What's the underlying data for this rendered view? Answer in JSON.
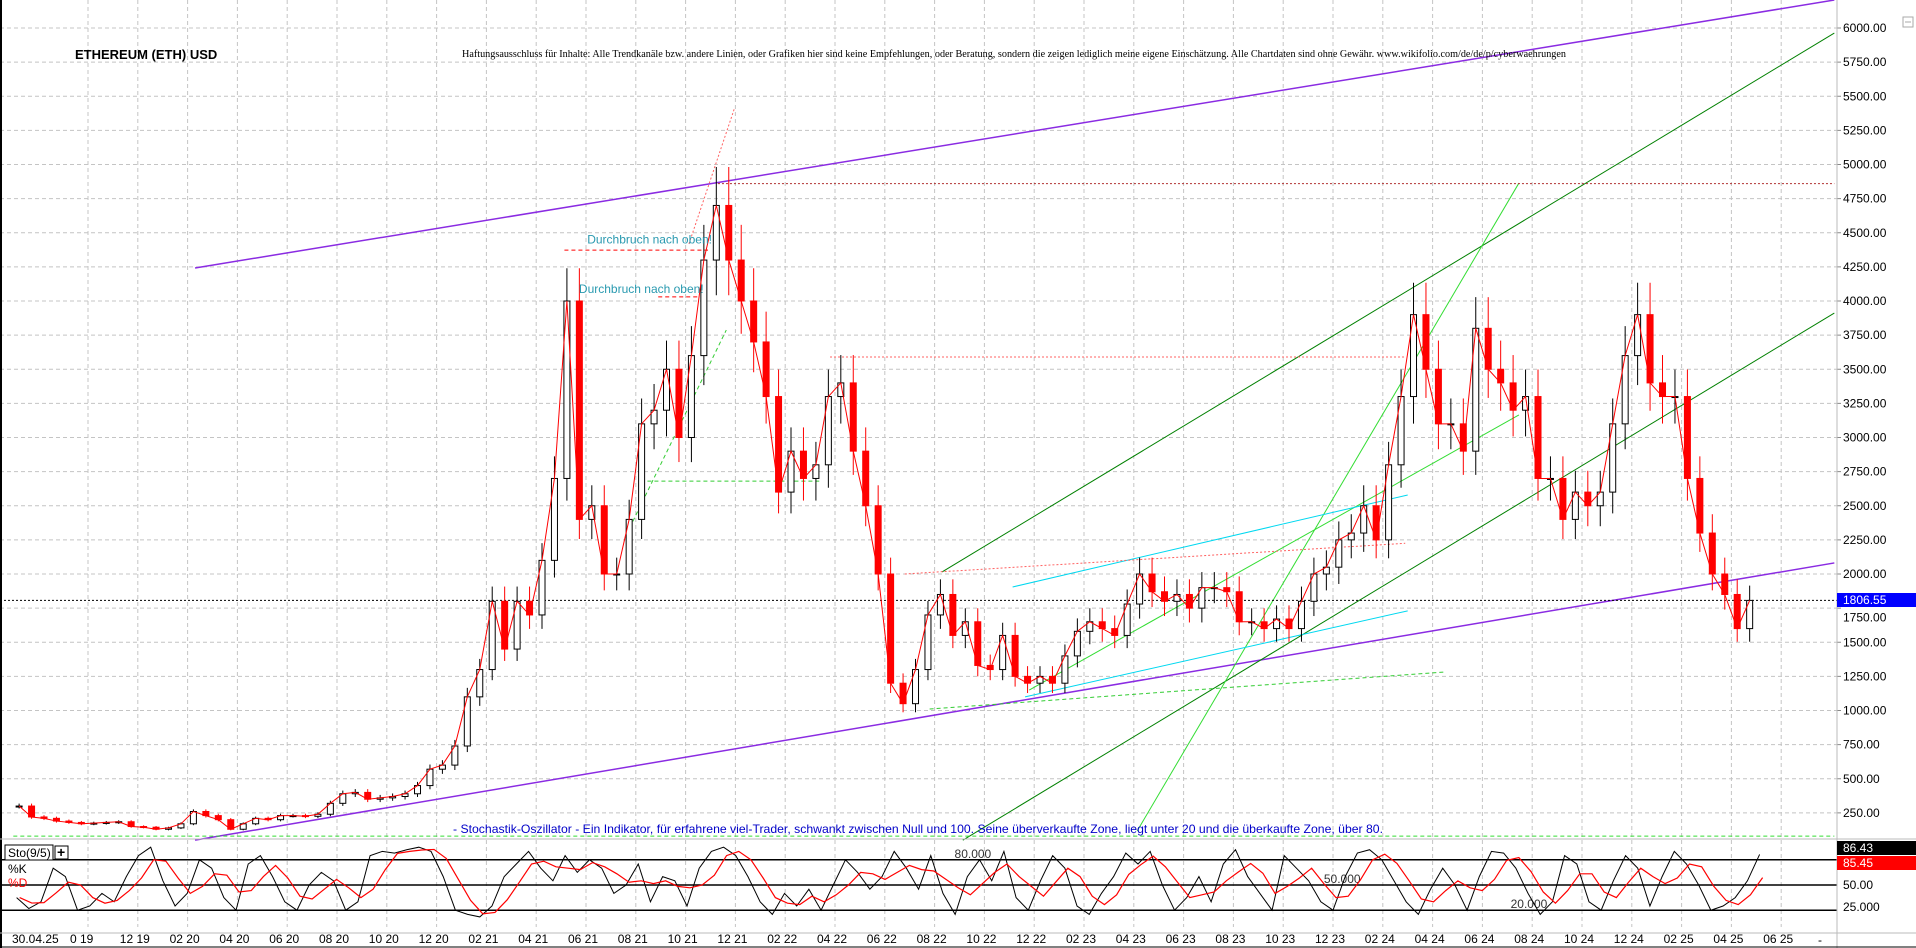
{
  "chart_data": {
    "type": "candlestick",
    "title": "ETHEREUM (ETH) USD",
    "disclaimer": "Haftungsausschluss für Inhalte: Alle Trendkanäle bzw. andere Linien, oder Grafiken hier sind keine Empfehlungen, oder Beratung, sondern die zeigen lediglich meine eigene Einschätzung. Alle Chartdaten sind ohne Gewähr.  www.wikifolio.com/de/de/p/cyberwaehrungen",
    "ylim": [
      0,
      6200
    ],
    "y_ticks": [
      "6000.00",
      "5750.00",
      "5500.00",
      "5250.00",
      "5000.00",
      "4750.00",
      "4500.00",
      "4250.00",
      "4000.00",
      "3750.00",
      "3500.00",
      "3250.00",
      "3000.00",
      "2750.00",
      "2500.00",
      "2250.00",
      "2000.00",
      "1750.00",
      "1500.00",
      "1250.00",
      "1000.00",
      "750.00",
      "500.00",
      "250.00"
    ],
    "x_ticks": [
      {
        "label": "30.04.25",
        "date": "2019-07-01"
      },
      {
        "label": "0 19",
        "date": "2019-10-01"
      },
      {
        "label": "12 19",
        "date": "2019-12-01"
      },
      {
        "label": "02 20",
        "date": "2020-02-01"
      },
      {
        "label": "04 20",
        "date": "2020-04-01"
      },
      {
        "label": "06 20",
        "date": "2020-06-01"
      },
      {
        "label": "08 20",
        "date": "2020-08-01"
      },
      {
        "label": "10 20",
        "date": "2020-10-01"
      },
      {
        "label": "12 20",
        "date": "2020-12-01"
      },
      {
        "label": "02 21",
        "date": "2021-02-01"
      },
      {
        "label": "04 21",
        "date": "2021-04-01"
      },
      {
        "label": "06 21",
        "date": "2021-06-01"
      },
      {
        "label": "08 21",
        "date": "2021-08-01"
      },
      {
        "label": "10 21",
        "date": "2021-10-01"
      },
      {
        "label": "12 21",
        "date": "2021-12-01"
      },
      {
        "label": "02 22",
        "date": "2022-02-01"
      },
      {
        "label": "04 22",
        "date": "2022-04-01"
      },
      {
        "label": "06 22",
        "date": "2022-06-01"
      },
      {
        "label": "08 22",
        "date": "2022-08-01"
      },
      {
        "label": "10 22",
        "date": "2022-10-01"
      },
      {
        "label": "12 22",
        "date": "2022-12-01"
      },
      {
        "label": "02 23",
        "date": "2023-02-01"
      },
      {
        "label": "04 23",
        "date": "2023-04-01"
      },
      {
        "label": "06 23",
        "date": "2023-06-01"
      },
      {
        "label": "08 23",
        "date": "2023-08-01"
      },
      {
        "label": "10 23",
        "date": "2023-10-01"
      },
      {
        "label": "12 23",
        "date": "2023-12-01"
      },
      {
        "label": "02 24",
        "date": "2024-02-01"
      },
      {
        "label": "04 24",
        "date": "2024-04-01"
      },
      {
        "label": "06 24",
        "date": "2024-06-01"
      },
      {
        "label": "08 24",
        "date": "2024-08-01"
      },
      {
        "label": "10 24",
        "date": "2024-10-01"
      },
      {
        "label": "12 24",
        "date": "2024-12-01"
      },
      {
        "label": "02 25",
        "date": "2025-02-01"
      },
      {
        "label": "04 25",
        "date": "2025-04-01"
      },
      {
        "label": "06 25",
        "date": "2025-06-01"
      }
    ],
    "axis_end_label": "-",
    "grid": true,
    "up_color": "#000000",
    "down_color": "#ff0000",
    "closes_semi_monthly_start": "2019-07",
    "closes": [
      300,
      220,
      210,
      190,
      180,
      170,
      175,
      180,
      185,
      150,
      145,
      130,
      140,
      170,
      260,
      230,
      200,
      130,
      170,
      210,
      200,
      230,
      230,
      225,
      240,
      320,
      390,
      400,
      350,
      360,
      370,
      390,
      450,
      570,
      600,
      740,
      1100,
      1300,
      1800,
      1450,
      1800,
      1700,
      2100,
      2700,
      4000,
      2400,
      2500,
      2000,
      2000,
      2400,
      3100,
      3200,
      3500,
      3000,
      3600,
      4300,
      4700,
      4300,
      4000,
      3700,
      3300,
      2600,
      2900,
      2700,
      2800,
      3300,
      3400,
      2900,
      2500,
      2000,
      1200,
      1050,
      1300,
      1700,
      1850,
      1550,
      1650,
      1330,
      1300,
      1550,
      1250,
      1200,
      1250,
      1200,
      1400,
      1580,
      1650,
      1600,
      1550,
      1780,
      2000,
      1870,
      1800,
      1850,
      1750,
      1900,
      1900,
      1870,
      1650,
      1650,
      1600,
      1670,
      1600,
      1800,
      2000,
      2050,
      2250,
      2300,
      2500,
      2250,
      2800,
      3300,
      3900,
      3500,
      3100,
      3100,
      2900,
      3800,
      3500,
      3400,
      3200,
      3300,
      2700,
      2700,
      2400,
      2600,
      2500,
      2600,
      3100,
      3600,
      3900,
      3400,
      3300,
      3300,
      2700,
      2300,
      2000,
      1850,
      1600,
      1806.55
    ],
    "current_price": {
      "label": "1806.55",
      "value": 1806.55,
      "color": "#0000ff"
    },
    "trendlines": [
      {
        "name": "upper-channel",
        "color": "#8a2be2",
        "style": "solid",
        "p1": [
          "2020-02-10",
          4242
        ],
        "p2": [
          "2025-08-05",
          6205
        ]
      },
      {
        "name": "lower-channel",
        "color": "#8a2be2",
        "style": "solid",
        "p1": [
          "2020-02-10",
          50
        ],
        "p2": [
          "2025-08-05",
          2081
        ]
      },
      {
        "name": "green-channel-top",
        "color": "#008000",
        "style": "solid",
        "p1": [
          "2022-08-10",
          2015
        ],
        "p2": [
          "2025-08-05",
          5963
        ]
      },
      {
        "name": "green-channel-bottom",
        "color": "#008000",
        "style": "solid",
        "p1": [
          "2022-09-05",
          50
        ],
        "p2": [
          "2025-08-05",
          3912
        ]
      },
      {
        "name": "lightgreen-steep",
        "color": "#33dd33",
        "style": "solid",
        "p1": [
          "2023-04-05",
          117
        ],
        "p2": [
          "2024-07-15",
          4864
        ]
      },
      {
        "name": "lightgreen-mid",
        "color": "#33dd33",
        "style": "solid",
        "p1": [
          "2022-11-25",
          1150
        ],
        "p2": [
          "2024-07-15",
          3165
        ]
      },
      {
        "name": "cyan-upper",
        "color": "#00d8f0",
        "style": "solid",
        "p1": [
          "2022-11-05",
          1905
        ],
        "p2": [
          "2024-03-01",
          2579
        ]
      },
      {
        "name": "cyan-lower",
        "color": "#00d8f0",
        "style": "solid",
        "p1": [
          "2022-11-20",
          1100
        ],
        "p2": [
          "2024-03-01",
          1730
        ]
      },
      {
        "name": "ath-level",
        "color": "#b03030",
        "style": "dotted",
        "p1": [
          "2021-11-10",
          4860
        ],
        "p2": [
          "2025-08-05",
          4860
        ]
      },
      {
        "name": "resistance-3590",
        "color": "#ff6060",
        "style": "dotted",
        "p1": [
          "2022-03-25",
          3590
        ],
        "p2": [
          "2024-02-28",
          3590
        ]
      },
      {
        "name": "red-rising",
        "color": "#ff6060",
        "style": "dotted",
        "p1": [
          "2022-06-25",
          2000
        ],
        "p2": [
          "2024-02-28",
          2225
        ]
      },
      {
        "name": "support-2680",
        "color": "#33cc33",
        "style": "dashed",
        "p1": [
          "2021-08-15",
          2680
        ],
        "p2": [
          "2022-03-12",
          2680
        ]
      },
      {
        "name": "green-diag-2021",
        "color": "#33cc33",
        "style": "dashed",
        "p1": [
          "2021-07-20",
          2293
        ],
        "p2": [
          "2021-11-20",
          3787
        ]
      },
      {
        "name": "red-diag-2021",
        "color": "#ff6060",
        "style": "dotted",
        "p1": [
          "2021-10-05",
          4418
        ],
        "p2": [
          "2021-11-30",
          5414
        ]
      },
      {
        "name": "breakout-1",
        "color": "#ff0000",
        "style": "dashed",
        "p1": [
          "2021-05-05",
          4373
        ],
        "p2": [
          "2021-10-28",
          4373
        ]
      },
      {
        "name": "breakout-2",
        "color": "#ff0000",
        "style": "dashed",
        "p1": [
          "2021-08-28",
          4030
        ],
        "p2": [
          "2021-10-15",
          4030
        ]
      },
      {
        "name": "support-low",
        "color": "#33cc33",
        "style": "dashed",
        "p1": [
          "2022-07-25",
          1011
        ],
        "p2": [
          "2024-04-15",
          1282
        ]
      },
      {
        "name": "base-level",
        "color": "#33dd33",
        "style": "dashed",
        "p1": [
          "2019-07-01",
          80
        ],
        "p2": [
          "2025-08-05",
          80
        ]
      }
    ],
    "annotations": [
      {
        "text": "Durchbruch nach oben!",
        "date": "2021-10-15",
        "price": 4420
      },
      {
        "text": "Durchbruch nach oben!",
        "date": "2021-10-05",
        "price": 4060
      }
    ],
    "stochastic": {
      "label": "Sto(9/5)",
      "add_button": "+",
      "k_label": "%K",
      "d_label": "%D",
      "k_color": "#000000",
      "d_color": "#ff0000",
      "note": "- Stochastik-Oszillator - Ein Indikator, für erfahrene viel-Trader, schwankt zwischen Null und 100. Seine überverkaufte Zone, liegt unter 20 und die überkaufte Zone, über 80.",
      "ylim": [
        0,
        100
      ],
      "levels": [
        {
          "value": 80,
          "label": "80.000",
          "date": "2022-08-25"
        },
        {
          "value": 50,
          "label": "50.000",
          "date": "2023-11-20"
        },
        {
          "value": 20,
          "label": "20.000",
          "date": "2024-07-05"
        }
      ],
      "axis_ticks": [
        "50.00",
        "25.000"
      ],
      "k_last": {
        "label": "86.43",
        "color": "#000000"
      },
      "d_last": {
        "label": "85.45",
        "color": "#ff0000"
      },
      "start": "2019-07-05",
      "end": "2025-05-05",
      "k_values": [
        35,
        22,
        30,
        70,
        60,
        20,
        25,
        40,
        30,
        60,
        85,
        95,
        55,
        25,
        40,
        80,
        70,
        35,
        20,
        75,
        85,
        60,
        30,
        20,
        50,
        65,
        55,
        20,
        30,
        85,
        90,
        88,
        92,
        95,
        90,
        60,
        20,
        15,
        12,
        25,
        60,
        75,
        90,
        70,
        55,
        85,
        65,
        80,
        70,
        40,
        50,
        75,
        30,
        60,
        55,
        25,
        70,
        90,
        95,
        85,
        60,
        30,
        15,
        40,
        25,
        45,
        20,
        50,
        80,
        65,
        45,
        60,
        90,
        70,
        45,
        85,
        40,
        15,
        60,
        80,
        55,
        90,
        35,
        20,
        55,
        85,
        70,
        25,
        15,
        40,
        60,
        88,
        75,
        90,
        50,
        20,
        35,
        60,
        30,
        75,
        92,
        60,
        40,
        20,
        85,
        70,
        55,
        30,
        20,
        60,
        88,
        92,
        80,
        55,
        30,
        15,
        45,
        70,
        50,
        20,
        60,
        90,
        88,
        70,
        40,
        15,
        30,
        85,
        75,
        30,
        20,
        55,
        85,
        70,
        25,
        60,
        90,
        75,
        50,
        20,
        25,
        35,
        55,
        86.43
      ]
    }
  }
}
